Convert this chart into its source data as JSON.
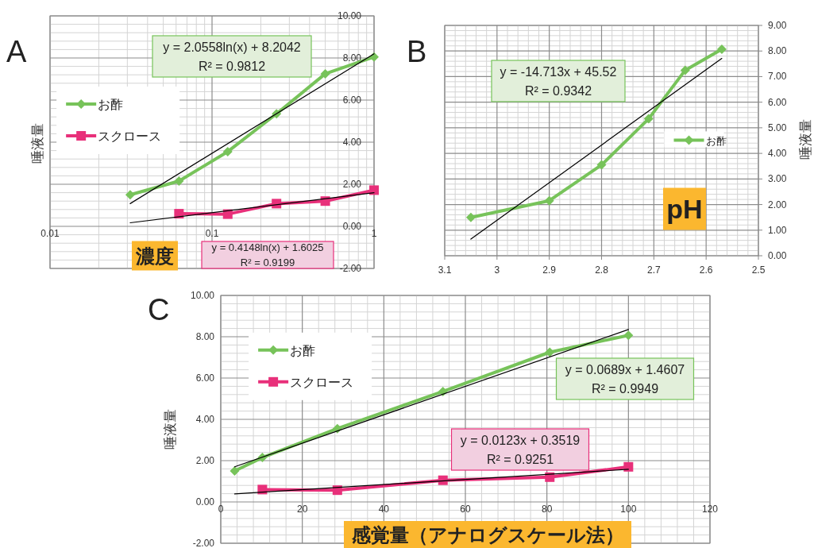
{
  "chart_data": [
    {
      "type": "line",
      "title": "A",
      "xlabel": "濃度",
      "ylabel": "唾液量",
      "log": "x",
      "xlim": [
        0.01,
        1
      ],
      "ylim": [
        -2,
        10
      ],
      "xticks": [
        0.01,
        0.1,
        1
      ],
      "yticks": [
        {
          "value": -2,
          "label": "-2.00"
        },
        {
          "value": 0,
          "label": "0.00"
        },
        {
          "value": 2,
          "label": "2.00"
        },
        {
          "value": 4,
          "label": "4.00"
        },
        {
          "value": 6,
          "label": "6.00"
        },
        {
          "value": 8,
          "label": "8.00"
        },
        {
          "value": 10,
          "label": "10.00"
        }
      ],
      "grid": true,
      "legend": "left",
      "line_style": "solid",
      "series": [
        {
          "name": "お酢",
          "color": "#77c35a",
          "marker": "diamond",
          "x": [
            0.03125,
            0.0625,
            0.125,
            0.25,
            0.5,
            1
          ],
          "values": [
            1.5,
            2.15,
            3.55,
            5.35,
            7.25,
            8.05
          ]
        },
        {
          "name": "スクロース",
          "color": "#e8307a",
          "marker": "square",
          "x": [
            0.0625,
            0.125,
            0.25,
            0.5,
            1
          ],
          "values": [
            0.6,
            0.58,
            1.08,
            1.2,
            1.72
          ]
        },
        {
          "type": "line",
          "color": "#000000",
          "marker": "none",
          "x": [
            0.03125,
            1
          ],
          "values": [
            1.08,
            8.2
          ]
        },
        {
          "type": "line",
          "color": "#000000",
          "marker": "none",
          "x": [
            0.03125,
            1
          ],
          "values": [
            0.17,
            1.6
          ]
        }
      ],
      "annotations": [
        "y = 2.0558ln(x) + 8.2042",
        "R² = 0.9812",
        "y = 0.4148ln(x) + 1.6025",
        "R² = 0.9199"
      ]
    },
    {
      "type": "line",
      "title": "B",
      "xlabel": "pH",
      "ylabel": "唾液量",
      "xlim": [
        3.1,
        2.5
      ],
      "ylim": [
        0,
        9
      ],
      "xticks": [
        3.1,
        3,
        2.9,
        2.8,
        2.7,
        2.6,
        2.5
      ],
      "yticks": [
        {
          "value": 0,
          "label": "0.00"
        },
        {
          "value": 1,
          "label": "1.00"
        },
        {
          "value": 2,
          "label": "2.00"
        },
        {
          "value": 3,
          "label": "3.00"
        },
        {
          "value": 4,
          "label": "4.00"
        },
        {
          "value": 5,
          "label": "5.00"
        },
        {
          "value": 6,
          "label": "6.00"
        },
        {
          "value": 7,
          "label": "7.00"
        },
        {
          "value": 8,
          "label": "8.00"
        },
        {
          "value": 9,
          "label": "9.00"
        }
      ],
      "grid": true,
      "legend": "right",
      "line_style": "solid",
      "series": [
        {
          "name": "お酢",
          "color": "#77c35a",
          "marker": "diamond",
          "x": [
            3.05,
            2.9,
            2.8,
            2.71,
            2.64,
            2.57
          ],
          "values": [
            1.5,
            2.15,
            3.55,
            5.35,
            7.25,
            8.07
          ]
        },
        {
          "type": "line",
          "color": "#000000",
          "marker": "none",
          "x": [
            3.05,
            2.57
          ],
          "values": [
            0.65,
            7.71
          ]
        }
      ],
      "annotations": [
        "y = -14.713x + 45.52",
        "R² = 0.9342"
      ]
    },
    {
      "type": "line",
      "title": "C",
      "xlabel": "感覚量（アナログスケール法）",
      "ylabel": "唾液量",
      "xlim": [
        0,
        120
      ],
      "ylim": [
        -2,
        10
      ],
      "xticks": [
        0,
        20,
        40,
        60,
        80,
        100,
        120
      ],
      "yticks": [
        {
          "value": -2,
          "label": "-2.00"
        },
        {
          "value": 0,
          "label": "0.00"
        },
        {
          "value": 2,
          "label": "2.00"
        },
        {
          "value": 4,
          "label": "4.00"
        },
        {
          "value": 6,
          "label": "6.00"
        },
        {
          "value": 8,
          "label": "8.00"
        },
        {
          "value": 10,
          "label": "10.00"
        }
      ],
      "grid": true,
      "legend": "top left",
      "line_style": "solid",
      "series": [
        {
          "name": "お酢",
          "color": "#77c35a",
          "marker": "diamond",
          "x": [
            3.4,
            10.2,
            28.6,
            54.5,
            80.7,
            100
          ],
          "values": [
            1.5,
            2.15,
            3.55,
            5.35,
            7.25,
            8.07
          ]
        },
        {
          "name": "スクロース",
          "color": "#e8307a",
          "marker": "square",
          "x": [
            10.2,
            28.6,
            54.5,
            80.7,
            100
          ],
          "values": [
            0.6,
            0.57,
            1.05,
            1.2,
            1.7
          ]
        },
        {
          "type": "line",
          "color": "#000000",
          "marker": "none",
          "x": [
            3.4,
            100
          ],
          "values": [
            1.7,
            8.35
          ]
        },
        {
          "type": "line",
          "color": "#000000",
          "marker": "none",
          "x": [
            3.4,
            100
          ],
          "values": [
            0.39,
            1.58
          ]
        }
      ],
      "annotations": [
        "y = 0.0689x + 1.4607",
        "R² = 0.9949",
        "y = 0.0123x + 0.3519",
        "R² = 0.9251"
      ]
    }
  ]
}
